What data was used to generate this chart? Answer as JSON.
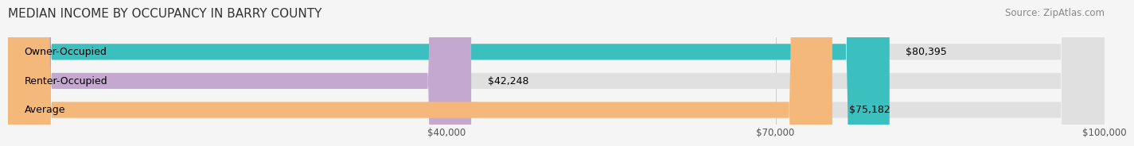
{
  "title": "MEDIAN INCOME BY OCCUPANCY IN BARRY COUNTY",
  "source": "Source: ZipAtlas.com",
  "categories": [
    "Owner-Occupied",
    "Renter-Occupied",
    "Average"
  ],
  "values": [
    80395,
    42248,
    75182
  ],
  "labels": [
    "$80,395",
    "$42,248",
    "$75,182"
  ],
  "bar_colors": [
    "#3bbfbf",
    "#c4a8d0",
    "#f4b97a"
  ],
  "bar_bg_color": "#e8e8e8",
  "xlim": [
    0,
    100000
  ],
  "xticks": [
    40000,
    70000,
    100000
  ],
  "xtick_labels": [
    "$40,000",
    "$70,000",
    "$100,000"
  ],
  "title_fontsize": 11,
  "source_fontsize": 8.5,
  "label_fontsize": 9,
  "category_fontsize": 9,
  "bar_height": 0.55,
  "background_color": "#f5f5f5"
}
